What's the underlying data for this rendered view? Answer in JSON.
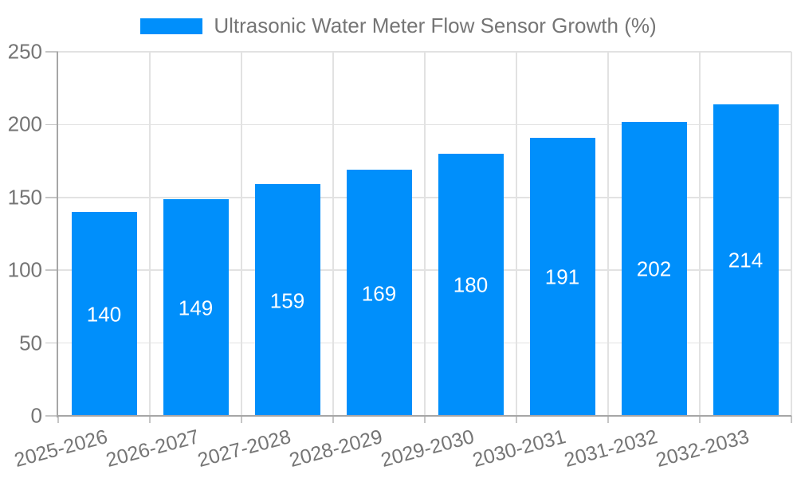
{
  "chart_data": {
    "type": "bar",
    "title": "Ultrasonic Water Meter Flow Sensor Growth (%)",
    "categories": [
      "2025-2026",
      "2026-2027",
      "2027-2028",
      "2028-2029",
      "2029-2030",
      "2030-2031",
      "2031-2032",
      "2032-2033"
    ],
    "series": [
      {
        "name": "Ultrasonic Water Meter Flow Sensor Growth (%)",
        "values": [
          140,
          149,
          159,
          169,
          180,
          191,
          202,
          214
        ]
      }
    ],
    "xlabel": "",
    "ylabel": "",
    "ylim": [
      0,
      250
    ],
    "yticks": [
      0,
      50,
      100,
      150,
      200,
      250
    ],
    "grid": true,
    "legend_position": "top",
    "x_label_rotation_deg": -15,
    "value_labels": "inside-center",
    "colors": {
      "bar": "#008FFB",
      "value_label": "#ffffff",
      "axis_label": "#757575",
      "gridline": "#e2e2e2",
      "tick": "#c6c6c6",
      "axis_line": "#a6a6a6",
      "background": "#ffffff"
    }
  }
}
